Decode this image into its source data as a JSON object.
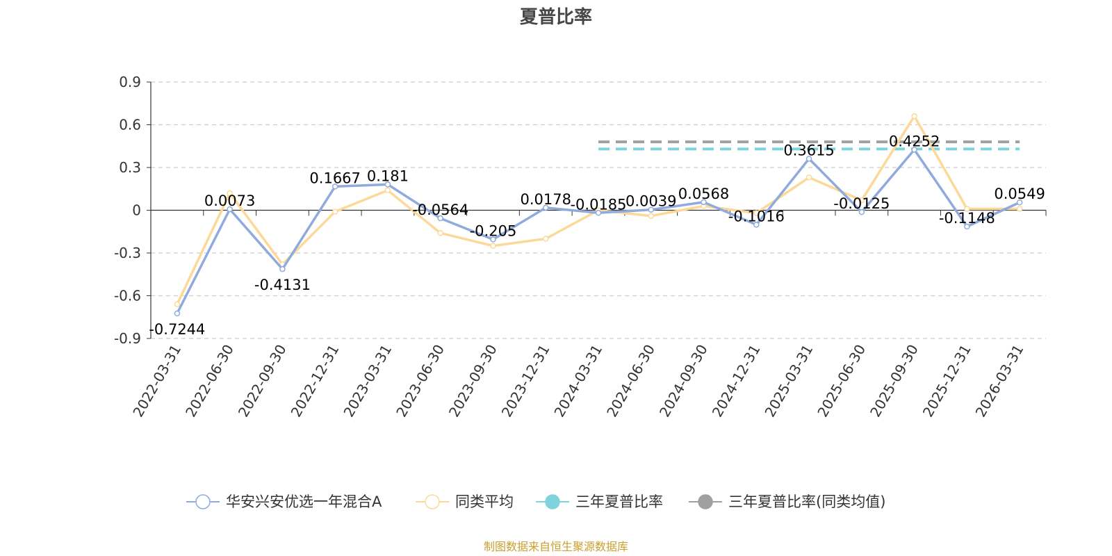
{
  "chart_data": {
    "type": "line",
    "title": "夏普比率",
    "categories": [
      "2022-03-31",
      "2022-06-30",
      "2022-09-30",
      "2022-12-31",
      "2023-03-31",
      "2023-06-30",
      "2023-09-30",
      "2023-12-31",
      "2024-03-31",
      "2024-06-30",
      "2024-09-30",
      "2024-12-31",
      "2025-03-31",
      "2025-06-30",
      "2025-09-30",
      "2025-12-31",
      "2026-03-31"
    ],
    "ylim": [
      -0.9,
      0.9
    ],
    "yticks": [
      0.9,
      0.6,
      0.3,
      0,
      -0.3,
      -0.6,
      -0.9
    ],
    "ytick_labels": [
      "0.9",
      "0.6",
      "0.3",
      "0",
      "-0.3",
      "-0.6",
      "-0.9"
    ],
    "grid": true,
    "legend_position": "bottom",
    "series": [
      {
        "name": "华安兴安优选一年混合A",
        "color": "#8faadc",
        "values": [
          -0.7244,
          0.0073,
          -0.4131,
          0.1667,
          0.181,
          -0.0564,
          -0.205,
          0.0178,
          -0.0185,
          0.0039,
          0.0568,
          -0.1016,
          0.3615,
          -0.0125,
          0.4252,
          -0.1148,
          0.0549
        ],
        "labels": [
          "-0.7244",
          "0.0073",
          "-0.4131",
          "0.1667",
          "0.181",
          "-0.0564",
          "-0.205",
          "0.0178",
          "-0.0185",
          "0.0039",
          "0.0568",
          "-0.1016",
          "0.3615",
          "-0.0125",
          "0.4252",
          "-0.1148",
          "0.0549"
        ]
      },
      {
        "name": "同类平均",
        "color": "#fcd998",
        "values": [
          -0.66,
          0.12,
          -0.38,
          -0.01,
          0.14,
          -0.16,
          -0.25,
          -0.2,
          0.0,
          -0.04,
          0.03,
          -0.02,
          0.23,
          0.07,
          0.66,
          0.01,
          0.01
        ]
      }
    ],
    "reference_lines": [
      {
        "name": "三年夏普比率",
        "color": "#7fd3dc",
        "value": 0.43,
        "from": "2024-03-31",
        "to": "2026-03-31"
      },
      {
        "name": "三年夏普比率(同类均值)",
        "color": "#a0a0a0",
        "value": 0.48,
        "from": "2024-03-31",
        "to": "2026-03-31"
      }
    ]
  },
  "source_text": "制图数据来自恒生聚源数据库"
}
